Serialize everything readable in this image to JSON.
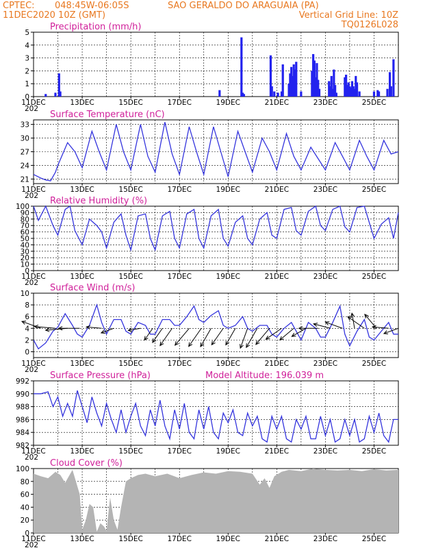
{
  "header": {
    "source": "CPTEC:",
    "coords": "048:45W-06:05S",
    "location": "SAO GERALDO DO ARAGUAIA (PA)",
    "init_time": "11DEC2020 10Z (GMT)",
    "grid_note": "Vertical Grid Line: 10Z",
    "model_code": "TQ0126L028",
    "colors": {
      "header": "#e87820",
      "panel_title": "#d0209a",
      "line": "#3333dd",
      "bar": "#2222ee",
      "cloud": "#b4b4b4"
    }
  },
  "x_axis": {
    "labels": [
      "11DEC",
      "13DEC",
      "15DEC",
      "17DEC",
      "19DEC",
      "21DEC",
      "23DEC",
      "25DEC"
    ],
    "year_stub": "202",
    "day_range": [
      0,
      15
    ]
  },
  "chart_data": [
    {
      "type": "bar",
      "title": "Precipitation (mm/h)",
      "ylim": [
        0,
        5
      ],
      "yticks": [
        0,
        1,
        2,
        3,
        4,
        5
      ],
      "x": [
        0.5,
        0.9,
        1.05,
        1.1,
        7.65,
        8.55,
        8.6,
        8.65,
        9.75,
        9.8,
        9.9,
        10.05,
        10.2,
        10.25,
        10.5,
        10.55,
        10.6,
        10.65,
        10.7,
        10.75,
        10.8,
        11.0,
        11.45,
        11.5,
        11.55,
        11.6,
        11.65,
        11.7,
        11.75,
        12.15,
        12.2,
        12.25,
        12.3,
        12.35,
        12.4,
        12.45,
        12.8,
        12.85,
        12.9,
        12.95,
        13.0,
        13.05,
        13.1,
        13.15,
        13.2,
        13.25,
        13.3,
        13.4,
        14.0,
        14.15,
        14.2,
        14.55,
        14.65,
        14.7,
        14.8
      ],
      "values": [
        0.2,
        0.3,
        1.8,
        0.4,
        0.5,
        4.6,
        0.3,
        0.2,
        3.2,
        0.8,
        0.4,
        0.3,
        0.4,
        2.5,
        1.0,
        1.8,
        2.3,
        1.6,
        2.5,
        2.1,
        2.7,
        0.4,
        2.0,
        3.3,
        2.8,
        1.5,
        2.6,
        1.3,
        0.6,
        1.2,
        0.8,
        1.6,
        0.6,
        2.1,
        0.9,
        0.3,
        1.5,
        1.7,
        0.9,
        1.1,
        0.8,
        0.7,
        1.2,
        0.8,
        0.6,
        1.6,
        1.1,
        0.4,
        0.4,
        0.5,
        0.4,
        0.6,
        1.9,
        0.8,
        2.9
      ]
    },
    {
      "type": "line",
      "title": "Surface Temperature (nC)",
      "ylim": [
        20,
        34
      ],
      "yticks": [
        21,
        24,
        27,
        30,
        33
      ],
      "x": [
        0,
        0.3,
        0.5,
        0.7,
        0.9,
        1.0,
        1.4,
        1.7,
        2.0,
        2.4,
        2.7,
        3.0,
        3.4,
        3.7,
        4.0,
        4.4,
        4.7,
        5.0,
        5.4,
        5.7,
        6.0,
        6.4,
        6.7,
        7.0,
        7.4,
        7.7,
        8.0,
        8.4,
        8.7,
        9.0,
        9.4,
        9.7,
        10.0,
        10.4,
        10.7,
        11.0,
        11.4,
        11.7,
        12.0,
        12.4,
        12.7,
        13.0,
        13.4,
        13.7,
        14.0,
        14.4,
        14.7,
        15.0
      ],
      "values": [
        22,
        21.2,
        20.8,
        20.6,
        22.5,
        24,
        29,
        27,
        23.5,
        31.5,
        27,
        23,
        33,
        27,
        23,
        33,
        26,
        22.5,
        33.5,
        26.5,
        22,
        32.5,
        27,
        22,
        32.5,
        27,
        21.5,
        31.5,
        27,
        22.5,
        30,
        27,
        23,
        31,
        26,
        23,
        28,
        25.5,
        23,
        29,
        26,
        23,
        29.5,
        26,
        23,
        29.5,
        26.5,
        27
      ]
    },
    {
      "type": "line",
      "title": "Relative Humidity (%)",
      "ylim": [
        0,
        100
      ],
      "yticks": [
        0,
        10,
        20,
        30,
        40,
        50,
        60,
        70,
        80,
        90,
        100
      ],
      "x": [
        0,
        0.2,
        0.5,
        0.8,
        1.0,
        1.3,
        1.5,
        1.7,
        2.0,
        2.3,
        2.6,
        2.8,
        3.0,
        3.3,
        3.6,
        3.8,
        4.0,
        4.3,
        4.6,
        4.8,
        5.0,
        5.3,
        5.6,
        5.8,
        6.0,
        6.3,
        6.6,
        6.8,
        7.0,
        7.3,
        7.6,
        7.8,
        8.0,
        8.3,
        8.6,
        8.8,
        9.0,
        9.3,
        9.6,
        9.8,
        10.0,
        10.3,
        10.6,
        10.8,
        11.0,
        11.3,
        11.6,
        11.8,
        12.0,
        12.3,
        12.6,
        12.8,
        13.0,
        13.3,
        13.6,
        13.8,
        14.0,
        14.3,
        14.6,
        14.8,
        15.0
      ],
      "values": [
        100,
        78,
        100,
        70,
        55,
        95,
        100,
        62,
        40,
        80,
        70,
        60,
        35,
        75,
        88,
        55,
        32,
        85,
        88,
        50,
        32,
        85,
        92,
        50,
        35,
        88,
        95,
        50,
        35,
        85,
        95,
        50,
        38,
        75,
        85,
        50,
        40,
        80,
        90,
        55,
        50,
        95,
        98,
        62,
        55,
        92,
        100,
        70,
        62,
        95,
        100,
        68,
        60,
        98,
        100,
        75,
        50,
        72,
        82,
        50,
        90
      ]
    },
    {
      "type": "line",
      "title": "Surface Wind (m/s)",
      "ylim": [
        -1,
        10
      ],
      "yticks": [
        0,
        2,
        4,
        6,
        8,
        10
      ],
      "x": [
        0,
        0.2,
        0.5,
        0.8,
        1.0,
        1.3,
        1.6,
        1.8,
        2.0,
        2.3,
        2.6,
        2.8,
        3.0,
        3.3,
        3.6,
        3.8,
        4.0,
        4.3,
        4.6,
        4.8,
        5.0,
        5.3,
        5.6,
        5.8,
        6.0,
        6.3,
        6.6,
        6.8,
        7.0,
        7.3,
        7.6,
        7.8,
        8.0,
        8.3,
        8.6,
        8.8,
        9.0,
        9.3,
        9.6,
        9.8,
        10.0,
        10.3,
        10.6,
        10.8,
        11.0,
        11.3,
        11.6,
        11.8,
        12.0,
        12.3,
        12.6,
        12.8,
        13.0,
        13.3,
        13.6,
        13.8,
        14.0,
        14.3,
        14.6,
        14.8,
        15.0
      ],
      "values": [
        2,
        0.5,
        1.5,
        3.5,
        4.2,
        6.5,
        4.5,
        3,
        2.5,
        4.5,
        8,
        5,
        3,
        5.5,
        5.5,
        3.5,
        3,
        5,
        4.5,
        3,
        3,
        5.5,
        5.5,
        4.5,
        4.5,
        6,
        7.8,
        5.5,
        5,
        6.2,
        7,
        4.5,
        4,
        4.5,
        6,
        4,
        3.5,
        4.5,
        4.5,
        3,
        2.5,
        4,
        5,
        3.5,
        2,
        5,
        4,
        2.5,
        2.5,
        5,
        7.8,
        3,
        1,
        3.5,
        5.5,
        2.5,
        2,
        3.5,
        5,
        3,
        3
      ]
    },
    {
      "type": "line",
      "title": "Surface Pressure (hPa)",
      "annotation": "Model Altitude: 196.039 m",
      "ylim": [
        982,
        992
      ],
      "yticks": [
        982,
        984,
        986,
        988,
        990,
        992
      ],
      "x": [
        0,
        0.3,
        0.6,
        0.8,
        1.0,
        1.2,
        1.4,
        1.6,
        1.8,
        2.0,
        2.2,
        2.4,
        2.6,
        2.8,
        3.0,
        3.2,
        3.4,
        3.6,
        3.8,
        4.0,
        4.2,
        4.4,
        4.6,
        4.8,
        5.0,
        5.2,
        5.4,
        5.6,
        5.8,
        6.0,
        6.2,
        6.4,
        6.6,
        6.8,
        7.0,
        7.2,
        7.4,
        7.6,
        7.8,
        8.0,
        8.2,
        8.4,
        8.6,
        8.8,
        9.0,
        9.2,
        9.4,
        9.6,
        9.8,
        10.0,
        10.2,
        10.4,
        10.6,
        10.8,
        11.0,
        11.2,
        11.4,
        11.6,
        11.8,
        12.0,
        12.2,
        12.4,
        12.6,
        12.8,
        13.0,
        13.2,
        13.4,
        13.6,
        13.8,
        14.0,
        14.2,
        14.4,
        14.6,
        14.8,
        15.0
      ],
      "values": [
        990,
        990,
        990.3,
        988,
        989.5,
        986.5,
        988.5,
        986.5,
        990.5,
        988,
        985.5,
        989.5,
        987,
        985,
        988.5,
        986,
        984,
        987.5,
        984,
        986.5,
        988.5,
        985,
        983.5,
        987.5,
        985,
        989,
        985,
        983,
        987.5,
        984.5,
        988.5,
        984,
        983,
        987.5,
        984.5,
        988,
        984,
        983,
        987,
        985.5,
        987.5,
        984,
        983.5,
        987,
        985,
        986.5,
        983,
        982.5,
        986.5,
        984.5,
        986.5,
        983,
        982.5,
        986,
        984.5,
        986.5,
        983,
        983,
        986.5,
        983.5,
        986,
        982.5,
        983,
        986,
        983.5,
        986,
        982.5,
        983,
        986.5,
        984,
        987,
        983.5,
        982.5,
        986,
        986
      ]
    },
    {
      "type": "area",
      "title": "Cloud Cover (%)",
      "ylim": [
        0,
        100
      ],
      "yticks": [
        0,
        20,
        40,
        60,
        80,
        100
      ],
      "x": [
        0,
        0.3,
        0.6,
        0.9,
        1.1,
        1.3,
        1.6,
        1.9,
        2.0,
        2.15,
        2.3,
        2.45,
        2.6,
        2.75,
        2.9,
        3.0,
        3.15,
        3.3,
        3.45,
        3.6,
        3.8,
        4.0,
        4.3,
        4.6,
        5.0,
        5.5,
        6.0,
        6.5,
        7.0,
        7.5,
        8.0,
        8.5,
        9.0,
        9.3,
        9.5,
        9.7,
        9.9,
        10.2,
        10.5,
        11.0,
        11.5,
        12.0,
        12.5,
        13.0,
        13.5,
        14.0,
        14.5,
        15.0
      ],
      "values": [
        92,
        88,
        85,
        95,
        90,
        78,
        98,
        60,
        5,
        20,
        45,
        40,
        2,
        15,
        10,
        3,
        55,
        20,
        5,
        40,
        80,
        85,
        90,
        92,
        88,
        92,
        85,
        90,
        94,
        92,
        96,
        95,
        92,
        75,
        85,
        70,
        88,
        95,
        98,
        96,
        100,
        98,
        97,
        98,
        96,
        99,
        97,
        98
      ]
    }
  ],
  "wind_arrows": [
    {
      "day": 0.3,
      "speed": 4.2,
      "dir_deg": 110
    },
    {
      "day": 0.9,
      "speed": 4.4,
      "dir_deg": 95
    },
    {
      "day": 1.4,
      "speed": 4.6,
      "dir_deg": 85
    },
    {
      "day": 1.9,
      "speed": 4.4,
      "dir_deg": 90
    },
    {
      "day": 2.8,
      "speed": 3.2,
      "dir_deg": 95
    },
    {
      "day": 3.3,
      "speed": 2.8,
      "dir_deg": 70
    },
    {
      "day": 4.4,
      "speed": 2.6,
      "dir_deg": 80
    },
    {
      "day": 4.9,
      "speed": 3.0,
      "dir_deg": 35
    },
    {
      "day": 5.3,
      "speed": 3.6,
      "dir_deg": 35
    },
    {
      "day": 5.7,
      "speed": 4.4,
      "dir_deg": 35
    },
    {
      "day": 6.4,
      "speed": 4.6,
      "dir_deg": 40
    },
    {
      "day": 6.9,
      "speed": 4.6,
      "dir_deg": 35
    },
    {
      "day": 7.3,
      "speed": 4.4,
      "dir_deg": 30
    },
    {
      "day": 7.8,
      "speed": 4.2,
      "dir_deg": 35
    },
    {
      "day": 8.3,
      "speed": 4.0,
      "dir_deg": 30
    },
    {
      "day": 8.8,
      "speed": 4.4,
      "dir_deg": 20
    },
    {
      "day": 9.2,
      "speed": 4.6,
      "dir_deg": 30
    },
    {
      "day": 9.7,
      "speed": 4.4,
      "dir_deg": 40
    },
    {
      "day": 10.2,
      "speed": 4.0,
      "dir_deg": 55
    },
    {
      "day": 10.7,
      "speed": 3.8,
      "dir_deg": 50
    },
    {
      "day": 11.2,
      "speed": 3.4,
      "dir_deg": 60
    },
    {
      "day": 11.7,
      "speed": 4.0,
      "dir_deg": 90
    },
    {
      "day": 12.2,
      "speed": 3.6,
      "dir_deg": 105
    },
    {
      "day": 12.7,
      "speed": 3.8,
      "dir_deg": 110
    },
    {
      "day": 13.2,
      "speed": 3.2,
      "dir_deg": 170
    },
    {
      "day": 13.6,
      "speed": 4.2,
      "dir_deg": 125
    },
    {
      "day": 14.1,
      "speed": 3.8,
      "dir_deg": 140
    },
    {
      "day": 14.6,
      "speed": 3.4,
      "dir_deg": 95
    },
    {
      "day": 15.0,
      "speed": 3.2,
      "dir_deg": 70
    }
  ]
}
